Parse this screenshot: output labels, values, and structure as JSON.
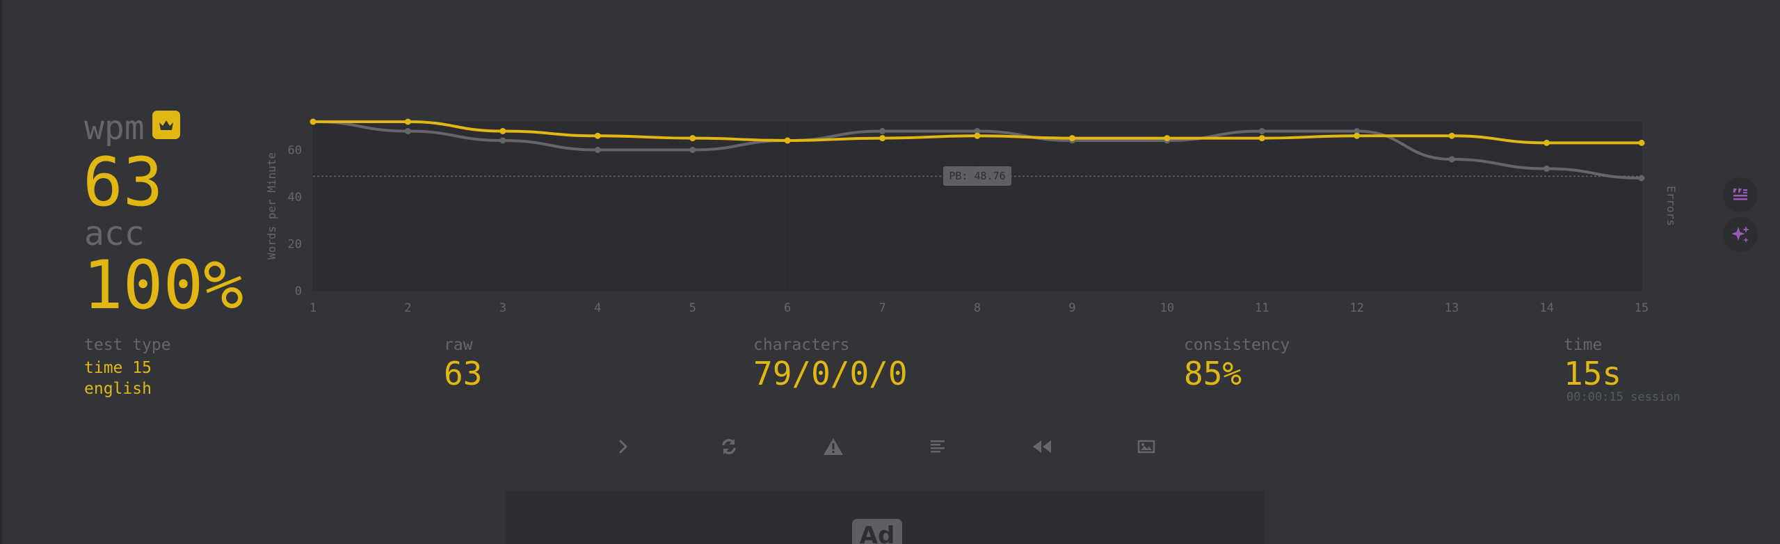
{
  "results": {
    "wpm_label": "wpm",
    "wpm_value": "63",
    "acc_label": "acc",
    "acc_value": "100%",
    "test_type_label": "test type",
    "test_type_mode": "time 15",
    "test_type_language": "english",
    "raw_label": "raw",
    "raw_value": "63",
    "characters_label": "characters",
    "characters_value": "79/0/0/0",
    "consistency_label": "consistency",
    "consistency_value": "85%",
    "time_label": "time",
    "time_value": "15s",
    "session_text": "00:00:15 session"
  },
  "chart_data": {
    "type": "line",
    "ylabel": "Words per Minute",
    "y2label": "Errors",
    "x": [
      1,
      2,
      3,
      4,
      5,
      6,
      7,
      8,
      9,
      10,
      11,
      12,
      13,
      14,
      15
    ],
    "ylim": [
      0,
      72
    ],
    "yticks": [
      0,
      20,
      40,
      60
    ],
    "series": [
      {
        "key": "wpm",
        "color": "#e2b714",
        "values": [
          72,
          72,
          68,
          66,
          65,
          64,
          65,
          66,
          65,
          65,
          65,
          66,
          66,
          63,
          63
        ]
      },
      {
        "key": "raw",
        "color": "#646669",
        "values": [
          72,
          68,
          64,
          60,
          60,
          64,
          68,
          68,
          64,
          64,
          68,
          68,
          56,
          52,
          48
        ]
      }
    ],
    "pb": {
      "value": 48.76,
      "label": "PB: 48.76"
    }
  },
  "actions": [
    {
      "name": "next-test-button",
      "icon": "chevron-right-icon"
    },
    {
      "name": "restart-test-button",
      "icon": "refresh-icon"
    },
    {
      "name": "report-button",
      "icon": "warning-icon"
    },
    {
      "name": "words-history-button",
      "icon": "align-left-icon"
    },
    {
      "name": "replay-button",
      "icon": "backward-icon"
    },
    {
      "name": "screenshot-button",
      "icon": "image-icon"
    }
  ],
  "side_buttons": [
    {
      "name": "quote-button",
      "icon": "quote-icon",
      "color": "#9b59b6"
    },
    {
      "name": "ai-button",
      "icon": "sparkles-icon",
      "color": "#9b59b6"
    }
  ],
  "ad": {
    "badge": "Ad"
  },
  "colors": {
    "bg": "#323437",
    "main": "#e2b714",
    "sub": "#646669",
    "sub_alt": "#2c2e31"
  }
}
